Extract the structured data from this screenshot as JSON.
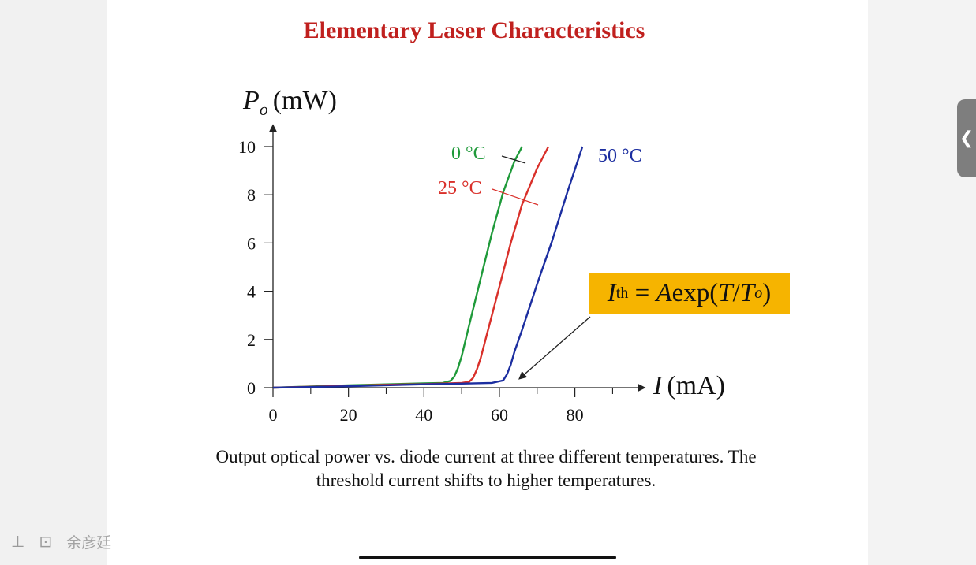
{
  "slide": {
    "title": "Elementary Laser Characteristics",
    "caption_line1": "Output optical power vs. diode current at three different temperatures. The",
    "caption_line2": "threshold current shifts to higher temperatures.",
    "formula": {
      "I": "I",
      "sub": "th",
      "rest1": " = ",
      "A": "A",
      "rest2": "exp(",
      "T": "T",
      "slash": "/",
      "To": "T",
      "To_sub": "o",
      "close": ")"
    }
  },
  "ui": {
    "expand_tab_icon": "chevron-left-icon",
    "expand_tab_glyph": "❮",
    "pin_icon": "pin-icon",
    "pin_glyph": "⊥",
    "screen_icon": "screen-record-icon",
    "screen_glyph": "⊡",
    "author_name": "余彦廷"
  },
  "chart_data": {
    "type": "line",
    "title": "",
    "ylabel_main": "P",
    "ylabel_sub": "o",
    "ylabel_unit": "(mW)",
    "xlabel_main": "I",
    "xlabel_unit": "(mA)",
    "xlim": [
      0,
      92
    ],
    "ylim": [
      0,
      10
    ],
    "xticks": [
      0,
      20,
      40,
      60,
      80
    ],
    "xticks_minor": [
      10,
      30,
      50,
      70,
      90
    ],
    "yticks": [
      0,
      2,
      4,
      6,
      8,
      10
    ],
    "grid": false,
    "series": [
      {
        "name": "0 °C",
        "color": "#1f9a3a",
        "x": [
          0,
          10,
          20,
          30,
          40,
          45,
          47,
          48,
          49,
          50,
          52,
          55,
          58,
          61,
          64,
          66
        ],
        "y": [
          0,
          0.05,
          0.1,
          0.14,
          0.18,
          0.2,
          0.28,
          0.45,
          0.8,
          1.3,
          2.6,
          4.5,
          6.4,
          8.1,
          9.4,
          10
        ]
      },
      {
        "name": "25 °C",
        "color": "#d9302a",
        "x": [
          0,
          10,
          20,
          30,
          40,
          50,
          52,
          53,
          54,
          55,
          57,
          60,
          63,
          66,
          70,
          73
        ],
        "y": [
          0,
          0.04,
          0.08,
          0.12,
          0.15,
          0.2,
          0.25,
          0.4,
          0.75,
          1.2,
          2.4,
          4.2,
          6.0,
          7.6,
          9.1,
          10
        ]
      },
      {
        "name": "50 °C",
        "color": "#1c2ea0",
        "x": [
          0,
          10,
          20,
          30,
          40,
          50,
          58,
          61,
          62,
          63,
          64,
          66,
          70,
          74,
          78,
          82
        ],
        "y": [
          0,
          0.03,
          0.06,
          0.1,
          0.14,
          0.17,
          0.2,
          0.3,
          0.55,
          0.95,
          1.5,
          2.4,
          4.3,
          6.1,
          8.1,
          10
        ]
      }
    ],
    "annotations": [
      {
        "text": "0 °C",
        "color": "#1f9a3a"
      },
      {
        "text": "25 °C",
        "color": "#d9302a"
      },
      {
        "text": "50 °C",
        "color": "#1c2ea0"
      }
    ]
  }
}
